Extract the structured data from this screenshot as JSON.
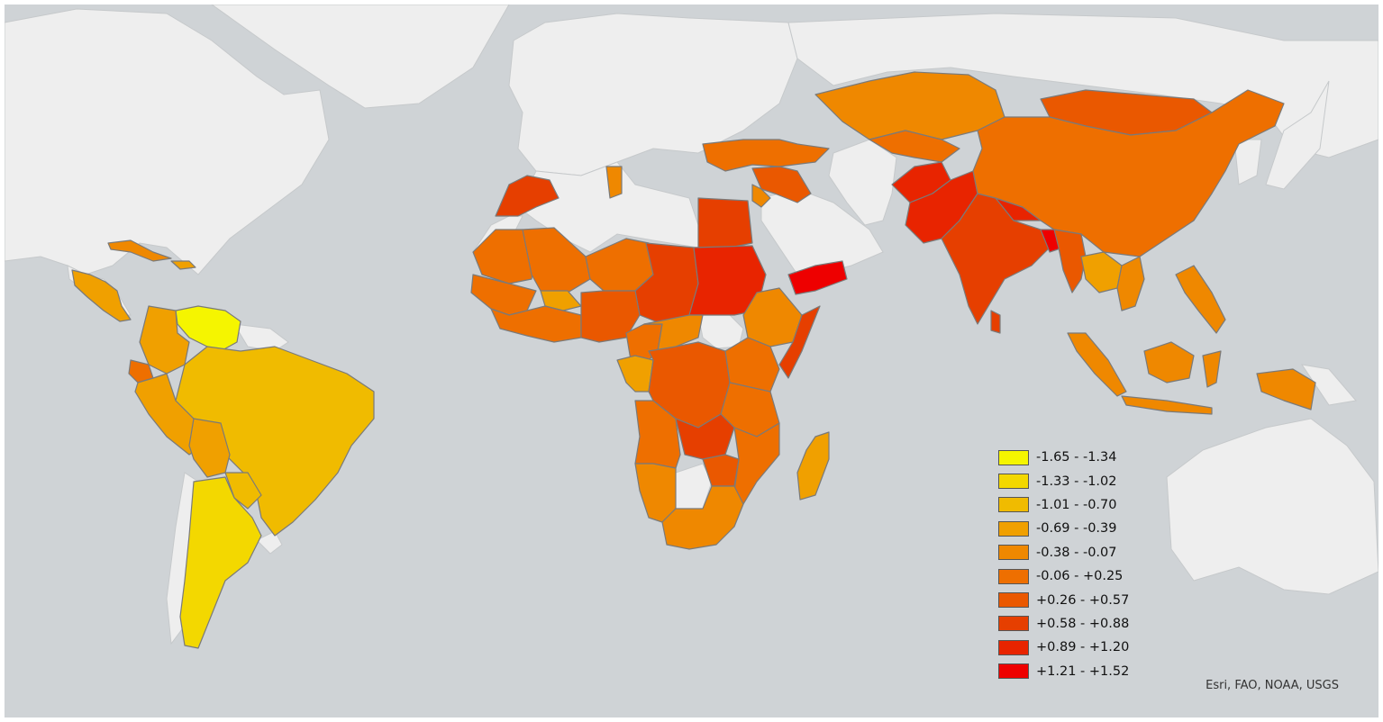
{
  "colors": {
    "ocean": "#cfd3d6",
    "no_data_land": "#eeeeee",
    "border": "#7a7a7a",
    "class_1": "#f5f500",
    "class_2": "#f3d800",
    "class_3": "#f0bb00",
    "class_4": "#f0a000",
    "class_5": "#ef8800",
    "class_6": "#ee6f00",
    "class_7": "#ea5800",
    "class_8": "#e63f00",
    "class_9": "#e82400",
    "class_10": "#ee0000"
  },
  "legend": {
    "items": [
      {
        "label": "-1.65 - -1.34",
        "color": "#f5f500"
      },
      {
        "label": "-1.33 - -1.02",
        "color": "#f3d800"
      },
      {
        "label": "-1.01 - -0.70",
        "color": "#f0bb00"
      },
      {
        "label": "-0.69 - -0.39",
        "color": "#f0a000"
      },
      {
        "label": "-0.38 - -0.07",
        "color": "#ef8800"
      },
      {
        "label": "-0.06 - +0.25",
        "color": "#ee6f00"
      },
      {
        "label": "+0.26 - +0.57",
        "color": "#ea5800"
      },
      {
        "label": "+0.58 - +0.88",
        "color": "#e63f00"
      },
      {
        "label": "+0.89 - +1.20",
        "color": "#e82400"
      },
      {
        "label": "+1.21 - +1.52",
        "color": "#ee0000"
      }
    ]
  },
  "attribution": "Esri, FAO, NOAA, USGS"
}
